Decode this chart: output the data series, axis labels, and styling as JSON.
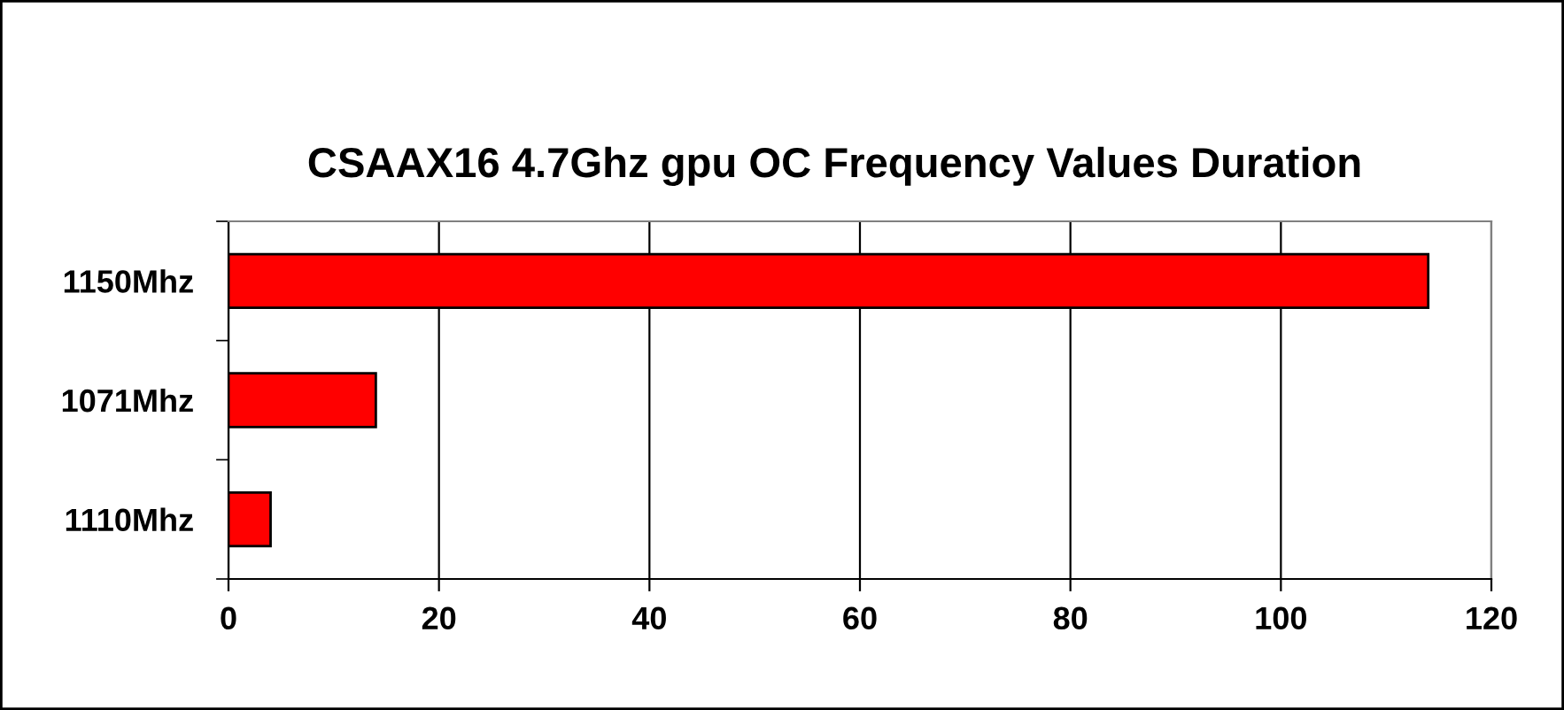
{
  "chart_data": {
    "type": "bar",
    "orientation": "horizontal",
    "title": "CSAAX16 4.7Ghz gpu OC Frequency Values Duration",
    "categories": [
      "1150Mhz",
      "1071Mhz",
      "1110Mhz"
    ],
    "values": [
      114,
      14,
      4
    ],
    "color": "#ff0000",
    "xlim": [
      0,
      120
    ],
    "xticks": [
      0,
      20,
      40,
      60,
      80,
      100,
      120
    ],
    "grid": "x",
    "legend": false
  }
}
